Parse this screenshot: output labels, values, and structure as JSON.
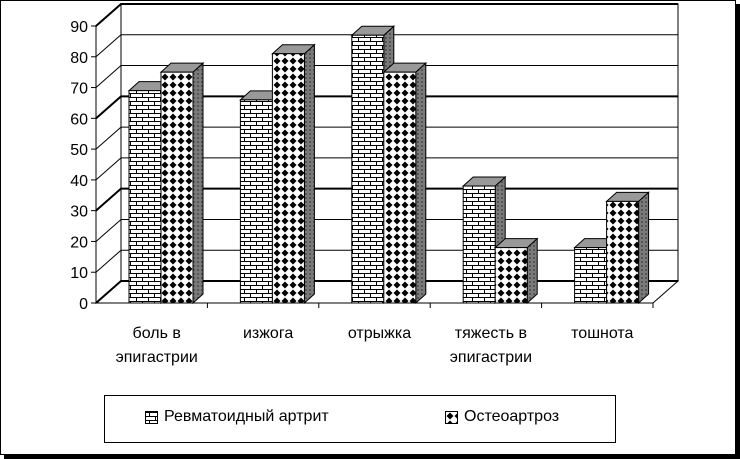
{
  "chart_data": {
    "type": "bar",
    "categories": [
      [
        "боль в",
        "эпигастрии"
      ],
      [
        "изжога"
      ],
      [
        "отрыжка"
      ],
      [
        "тяжесть в",
        "эпигастрии"
      ],
      [
        "тошнота"
      ]
    ],
    "series": [
      {
        "name": "Ревматоидный артрит",
        "values": [
          69,
          66,
          87,
          38,
          18
        ],
        "pattern": "brick"
      },
      {
        "name": "Остеоартроз",
        "values": [
          75,
          81,
          75,
          18,
          33
        ],
        "pattern": "diamond"
      }
    ],
    "ylim": [
      0,
      90
    ],
    "yticks": [
      0,
      10,
      20,
      30,
      40,
      50,
      60,
      70,
      80,
      90
    ],
    "grid": true,
    "three_d": true,
    "legend_position": "bottom"
  }
}
